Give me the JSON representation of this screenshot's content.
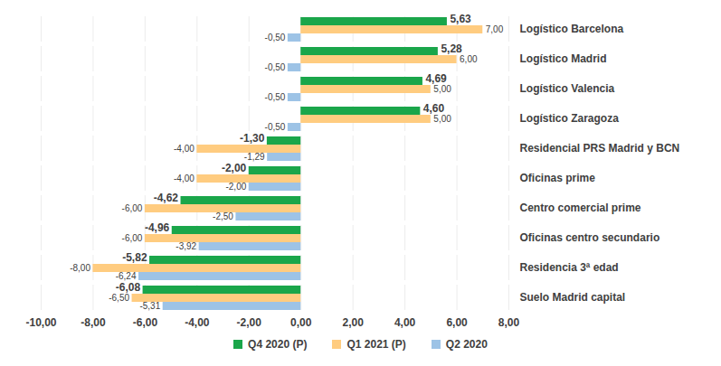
{
  "chart_data": {
    "type": "bar",
    "orientation": "horizontal",
    "categories": [
      "Logístico Barcelona",
      "Logístico Madrid",
      "Logístico Valencia",
      "Logístico Zaragoza",
      "Residencial PRS Madrid y BCN",
      "Oficinas prime",
      "Centro comercial prime",
      "Oficinas centro secundario",
      "Residencia 3ª edad",
      "Suelo Madrid capital"
    ],
    "series": [
      {
        "name": "Q4 2020 (P)",
        "color": "#1aa64a",
        "values": [
          5.63,
          5.28,
          4.69,
          4.6,
          -1.3,
          -2.0,
          -4.62,
          -4.96,
          -5.82,
          -6.08
        ],
        "value_labels": [
          "5,63",
          "5,28",
          "4,69",
          "4,60",
          "-1,30",
          "-2,00",
          "-4,62",
          "-4,96",
          "-5,82",
          "-6,08"
        ]
      },
      {
        "name": "Q1 2021 (P)",
        "color": "#ffcc80",
        "values": [
          7.0,
          6.0,
          5.0,
          5.0,
          -4.0,
          -4.0,
          -6.0,
          -6.0,
          -8.0,
          -6.5
        ],
        "value_labels": [
          "7,00",
          "6,00",
          "5,00",
          "5,00",
          "-4,00",
          "-4,00",
          "-6,00",
          "-6,00",
          "-8,00",
          "-6,50"
        ]
      },
      {
        "name": "Q2 2020",
        "color": "#9dc3e6",
        "values": [
          -0.5,
          -0.5,
          -0.5,
          -0.5,
          -1.29,
          -2.0,
          -2.5,
          -3.92,
          -6.24,
          -5.31
        ],
        "value_labels": [
          "-0,50",
          "-0,50",
          "-0,50",
          "-0,50",
          "-1,29",
          "-2,00",
          "-2,50",
          "-3,92",
          "-6,24",
          "-5,31"
        ]
      }
    ],
    "xlim": [
      -10,
      8
    ],
    "xticks": [
      {
        "value": -10,
        "label": "-10,00"
      },
      {
        "value": -8,
        "label": "-8,00"
      },
      {
        "value": -6,
        "label": "-6,00"
      },
      {
        "value": -4,
        "label": "-4,00"
      },
      {
        "value": -2,
        "label": "-2,00"
      },
      {
        "value": 0,
        "label": "0,00"
      },
      {
        "value": 2,
        "label": "2,00"
      },
      {
        "value": 4,
        "label": "4,00"
      },
      {
        "value": 6,
        "label": "6,00"
      },
      {
        "value": 8,
        "label": "8,00"
      }
    ],
    "grid": true,
    "data_labels": true,
    "legend": "bottom"
  }
}
